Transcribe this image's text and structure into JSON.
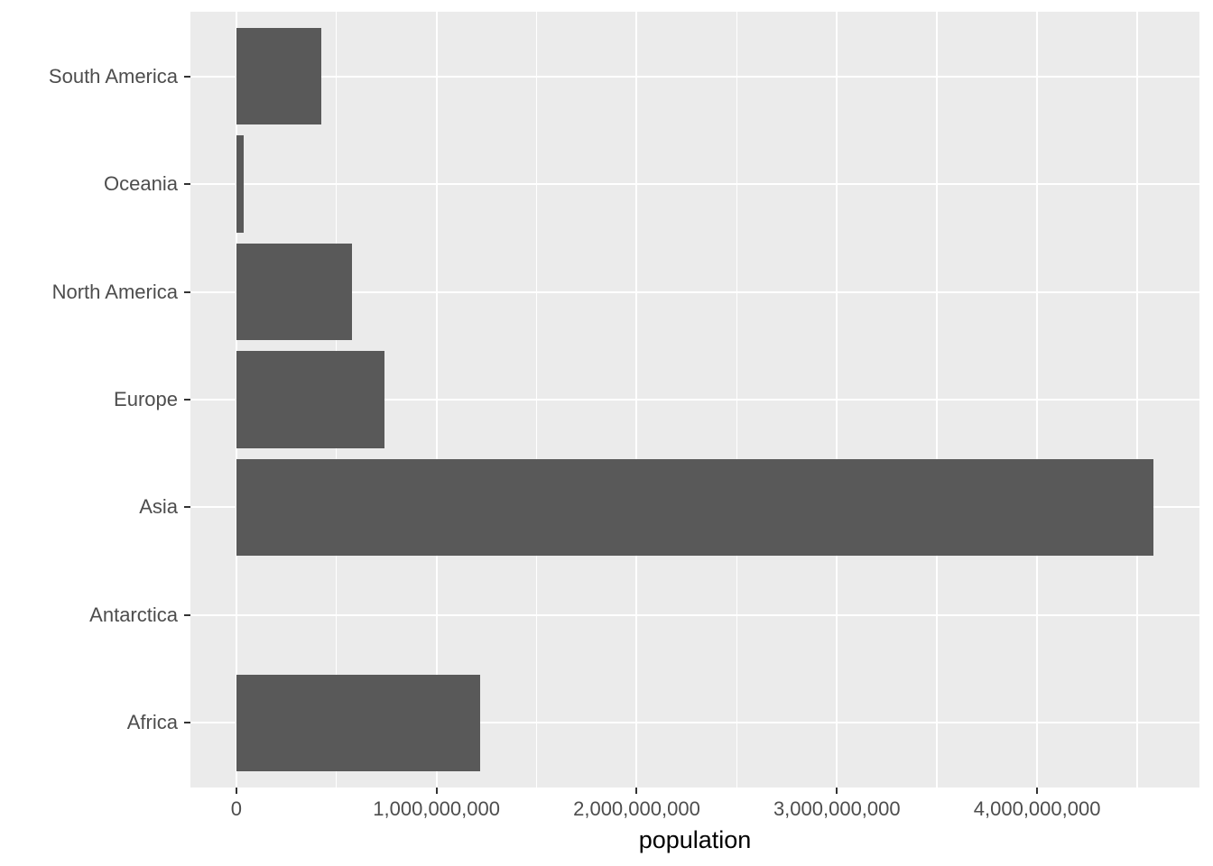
{
  "chart_data": {
    "type": "bar",
    "orientation": "horizontal",
    "title": "",
    "xlabel": "population",
    "ylabel": "",
    "categories": [
      "South America",
      "Oceania",
      "North America",
      "Europe",
      "Asia",
      "Antarctica",
      "Africa"
    ],
    "values": [
      422535000,
      38304000,
      579024000,
      738849000,
      4581757408,
      1106,
      1216130000
    ],
    "x_ticks": [
      0,
      1000000000,
      2000000000,
      3000000000,
      4000000000
    ],
    "x_tick_labels": [
      "0",
      "1,000,000,000",
      "2,000,000,000",
      "3,000,000,000",
      "4,000,000,000"
    ],
    "x_minor_gridlines": [
      500000000,
      1500000000,
      2500000000,
      3500000000,
      4500000000
    ],
    "xlim": [
      -229087870,
      4810845278
    ],
    "grid": "on",
    "legend": "none",
    "style": {
      "bar_color": "#595959",
      "panel_background": "#EBEBEB",
      "gridline_color": "#FFFFFF",
      "axis_text_color": "#4D4D4D",
      "axis_title_color": "#000000",
      "tick_color": "#333333",
      "figure_background": "#FFFFFF"
    }
  }
}
